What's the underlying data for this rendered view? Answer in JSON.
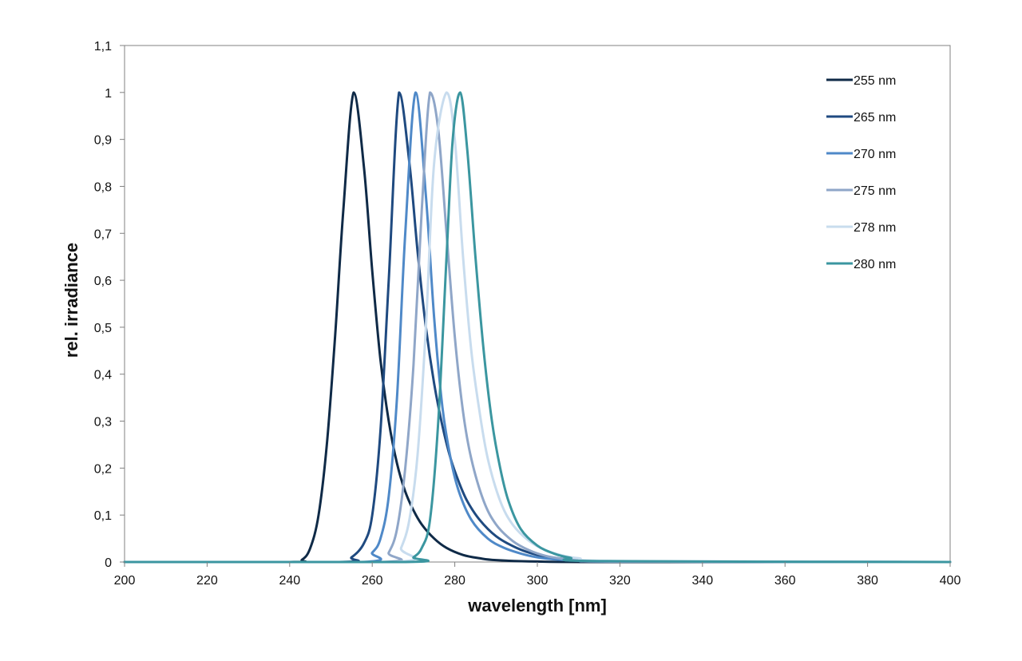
{
  "chart_data": {
    "type": "line",
    "xlabel": "wavelength [nm]",
    "ylabel": "rel. irradiance",
    "xlim": [
      200,
      400
    ],
    "ylim": [
      0,
      1.1
    ],
    "x_ticks": [
      "200",
      "220",
      "240",
      "260",
      "280",
      "300",
      "320",
      "340",
      "360",
      "380",
      "400"
    ],
    "y_ticks": [
      "0",
      "0,1",
      "0,2",
      "0,3",
      "0,4",
      "0,5",
      "0,6",
      "0,7",
      "0,8",
      "0,9",
      "1",
      "1,1"
    ],
    "grid": false,
    "legend_position": "top-right",
    "series": [
      {
        "name": "255 nm",
        "color": "#0f2a47",
        "x": [
          200,
          240,
          243,
          245,
          247,
          249,
          251,
          253,
          255.5,
          258,
          260,
          262,
          264,
          266,
          268,
          270,
          272,
          275,
          278,
          282,
          286,
          290,
          300,
          320,
          400
        ],
        "y": [
          0,
          0,
          0.005,
          0.03,
          0.1,
          0.25,
          0.48,
          0.75,
          1.0,
          0.84,
          0.62,
          0.43,
          0.3,
          0.21,
          0.15,
          0.11,
          0.08,
          0.05,
          0.03,
          0.015,
          0.008,
          0.004,
          0.001,
          0,
          0
        ]
      },
      {
        "name": "265 nm",
        "color": "#1f4a80",
        "x": [
          200,
          252,
          255,
          258,
          260,
          262,
          264,
          266.5,
          269,
          271,
          273,
          275,
          277,
          279,
          281,
          283,
          286,
          290,
          295,
          300,
          305,
          310,
          320,
          400
        ],
        "y": [
          0,
          0,
          0.01,
          0.04,
          0.1,
          0.28,
          0.6,
          1.0,
          0.85,
          0.66,
          0.5,
          0.38,
          0.29,
          0.22,
          0.17,
          0.13,
          0.09,
          0.055,
          0.03,
          0.015,
          0.008,
          0.004,
          0.001,
          0
        ]
      },
      {
        "name": "270 nm",
        "color": "#4f89c8",
        "x": [
          200,
          257,
          260,
          262,
          264,
          266,
          268,
          270.5,
          273,
          275,
          277,
          279,
          281,
          284,
          288,
          292,
          296,
          300,
          305,
          310,
          320,
          400
        ],
        "y": [
          0,
          0,
          0.02,
          0.05,
          0.14,
          0.35,
          0.7,
          1.0,
          0.78,
          0.52,
          0.33,
          0.22,
          0.15,
          0.09,
          0.05,
          0.03,
          0.018,
          0.01,
          0.005,
          0.003,
          0.001,
          0
        ]
      },
      {
        "name": "275 nm",
        "color": "#8fa6c8",
        "x": [
          200,
          262,
          264,
          266,
          268,
          270,
          272,
          274,
          276,
          278,
          280,
          282,
          284,
          287,
          290,
          294,
          298,
          302,
          306,
          310,
          320,
          400
        ],
        "y": [
          0,
          0,
          0.02,
          0.07,
          0.2,
          0.42,
          0.75,
          1.0,
          0.92,
          0.7,
          0.48,
          0.32,
          0.22,
          0.13,
          0.08,
          0.045,
          0.025,
          0.013,
          0.007,
          0.004,
          0.001,
          0
        ]
      },
      {
        "name": "278 nm",
        "color": "#c8dcee",
        "x": [
          200,
          265,
          267,
          269,
          271,
          273,
          275,
          278,
          280,
          282,
          284,
          286,
          288,
          291,
          294,
          298,
          302,
          306,
          310,
          320,
          400
        ],
        "y": [
          0,
          0,
          0.03,
          0.09,
          0.23,
          0.5,
          0.85,
          1.0,
          0.9,
          0.65,
          0.45,
          0.32,
          0.22,
          0.13,
          0.08,
          0.045,
          0.025,
          0.014,
          0.008,
          0.002,
          0
        ]
      },
      {
        "name": "280 nm",
        "color": "#3b96a0",
        "x": [
          200,
          268,
          270,
          272,
          274,
          276,
          278,
          279.5,
          281.3,
          283,
          285,
          287,
          289,
          291,
          293,
          296,
          300,
          304,
          308,
          315,
          400
        ],
        "y": [
          0,
          0,
          0.01,
          0.03,
          0.09,
          0.3,
          0.65,
          0.9,
          1.0,
          0.88,
          0.65,
          0.45,
          0.3,
          0.2,
          0.13,
          0.07,
          0.035,
          0.018,
          0.009,
          0.002,
          0
        ]
      }
    ]
  }
}
